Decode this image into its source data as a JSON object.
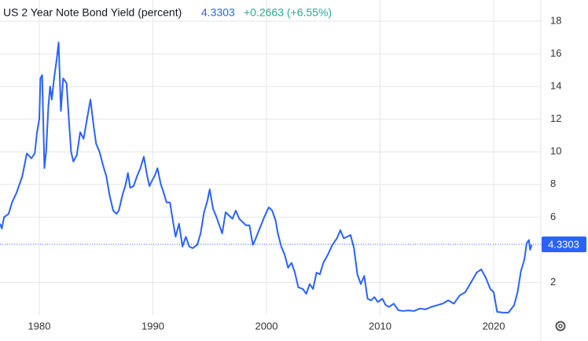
{
  "chart_data": {
    "type": "line",
    "title": "US 2 Year Note Bond Yield (percent)",
    "last_value": 4.3303,
    "change_label": "+0.2663 (+6.55%)",
    "grid": true,
    "xlim": [
      1976.54,
      2024.15
    ],
    "xticks": [
      1980,
      1990,
      2000,
      2010,
      2020
    ],
    "ylim": [
      0,
      19.3
    ],
    "yticks": [
      2,
      6,
      8,
      10,
      12,
      14,
      16,
      18
    ],
    "series": [
      {
        "name": "US 2 Year Note Bond Yield",
        "color": "#2962ff",
        "x": [
          1976.55,
          1976.7,
          1976.9,
          1977.3,
          1977.6,
          1978.0,
          1978.5,
          1978.9,
          1979.3,
          1979.6,
          1979.8,
          1980.0,
          1980.1,
          1980.25,
          1980.45,
          1980.6,
          1980.8,
          1980.95,
          1981.1,
          1981.3,
          1981.5,
          1981.7,
          1981.9,
          1982.1,
          1982.4,
          1982.6,
          1982.8,
          1983.0,
          1983.3,
          1983.6,
          1983.9,
          1984.2,
          1984.5,
          1984.8,
          1985.0,
          1985.3,
          1985.6,
          1985.9,
          1986.2,
          1986.5,
          1986.8,
          1987.0,
          1987.3,
          1987.6,
          1987.8,
          1988.0,
          1988.3,
          1988.6,
          1988.9,
          1989.2,
          1989.5,
          1989.7,
          1989.9,
          1990.2,
          1990.4,
          1990.7,
          1990.9,
          1991.2,
          1991.5,
          1991.8,
          1992.0,
          1992.3,
          1992.6,
          1992.9,
          1993.2,
          1993.5,
          1993.9,
          1994.2,
          1994.5,
          1994.8,
          1995.0,
          1995.3,
          1995.6,
          1995.9,
          1996.1,
          1996.4,
          1996.7,
          1997.0,
          1997.3,
          1997.6,
          1997.9,
          1998.2,
          1998.5,
          1998.8,
          1999.0,
          1999.4,
          1999.8,
          2000.2,
          2000.5,
          2000.8,
          2001.0,
          2001.3,
          2001.6,
          2001.9,
          2002.2,
          2002.5,
          2002.8,
          2003.2,
          2003.5,
          2003.8,
          2004.1,
          2004.4,
          2004.7,
          2005.0,
          2005.4,
          2005.8,
          2006.2,
          2006.5,
          2006.8,
          2007.1,
          2007.4,
          2007.7,
          2008.0,
          2008.3,
          2008.6,
          2008.9,
          2009.2,
          2009.5,
          2009.8,
          2010.2,
          2010.5,
          2010.8,
          2011.2,
          2011.6,
          2012.0,
          2012.5,
          2013.0,
          2013.5,
          2014.0,
          2014.5,
          2015.0,
          2015.5,
          2016.0,
          2016.5,
          2017.0,
          2017.5,
          2018.0,
          2018.5,
          2018.9,
          2019.3,
          2019.7,
          2020.0,
          2020.3,
          2020.8,
          2021.3,
          2021.8,
          2022.1,
          2022.4,
          2022.7,
          2022.9,
          2023.1,
          2023.2,
          2023.35
        ],
        "values": [
          5.6,
          5.3,
          6.0,
          6.2,
          6.9,
          7.5,
          8.5,
          9.9,
          9.6,
          9.9,
          11.2,
          12.0,
          14.5,
          14.7,
          9.0,
          10.0,
          12.8,
          14.0,
          13.2,
          14.5,
          15.5,
          16.7,
          12.5,
          14.5,
          14.2,
          12.0,
          10.0,
          9.4,
          9.8,
          11.2,
          10.8,
          12.0,
          13.2,
          11.5,
          10.5,
          10.0,
          9.2,
          8.5,
          7.3,
          6.4,
          6.2,
          6.4,
          7.3,
          8.0,
          8.7,
          7.8,
          7.9,
          8.5,
          9.0,
          9.7,
          8.5,
          7.9,
          8.2,
          8.6,
          9.0,
          8.0,
          7.6,
          6.9,
          6.9,
          5.6,
          4.8,
          5.6,
          4.2,
          4.8,
          4.2,
          4.1,
          4.3,
          5.0,
          6.3,
          7.0,
          7.7,
          6.5,
          6.0,
          5.4,
          5.0,
          6.3,
          6.1,
          5.9,
          6.4,
          5.9,
          5.7,
          5.5,
          5.5,
          4.3,
          4.6,
          5.3,
          6.0,
          6.6,
          6.4,
          5.8,
          5.0,
          4.2,
          3.7,
          2.9,
          3.2,
          2.6,
          1.7,
          1.6,
          1.3,
          1.9,
          1.6,
          2.6,
          2.5,
          3.2,
          3.7,
          4.3,
          4.7,
          5.2,
          4.7,
          4.8,
          4.9,
          4.1,
          2.5,
          1.9,
          2.4,
          1.0,
          0.9,
          1.1,
          0.8,
          1.0,
          0.6,
          0.5,
          0.7,
          0.3,
          0.25,
          0.28,
          0.25,
          0.4,
          0.35,
          0.5,
          0.6,
          0.7,
          0.9,
          0.7,
          1.2,
          1.4,
          2.0,
          2.6,
          2.8,
          2.3,
          1.6,
          1.4,
          0.2,
          0.15,
          0.15,
          0.6,
          1.4,
          2.7,
          3.4,
          4.4,
          4.6,
          4.0,
          4.3
        ]
      }
    ]
  }
}
